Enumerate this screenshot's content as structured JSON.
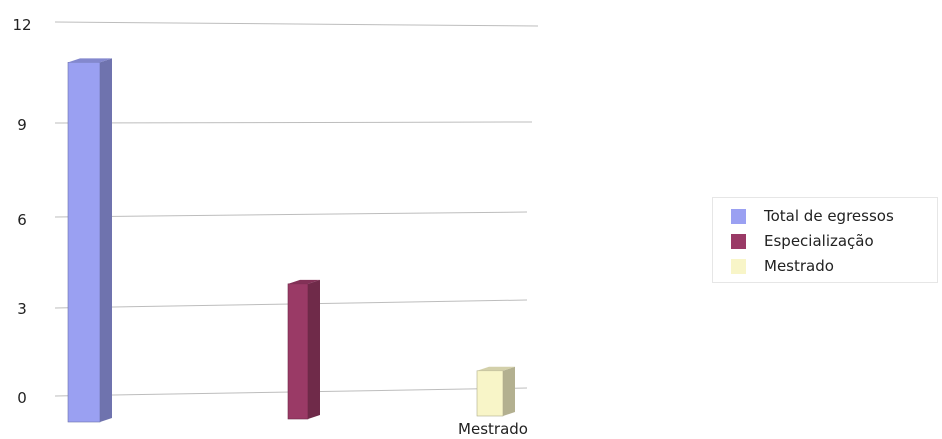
{
  "chart_data": {
    "type": "bar",
    "categories": [
      "",
      "",
      "Mestrado"
    ],
    "series": [
      {
        "name": "Total de egressos",
        "values": [
          11,
          0,
          0
        ],
        "color": "#9aa0f2"
      },
      {
        "name": "Especialização",
        "values": [
          0,
          3.5,
          0
        ],
        "color": "#9a3a66"
      },
      {
        "name": "Mestrado",
        "values": [
          0,
          0,
          0.7
        ],
        "color": "#f8f5c8"
      }
    ],
    "y_ticks": [
      "0",
      "3",
      "6",
      "9",
      "12"
    ],
    "ylim": [
      0,
      12
    ],
    "grid": true,
    "legend_position": "right",
    "view": "3d"
  }
}
